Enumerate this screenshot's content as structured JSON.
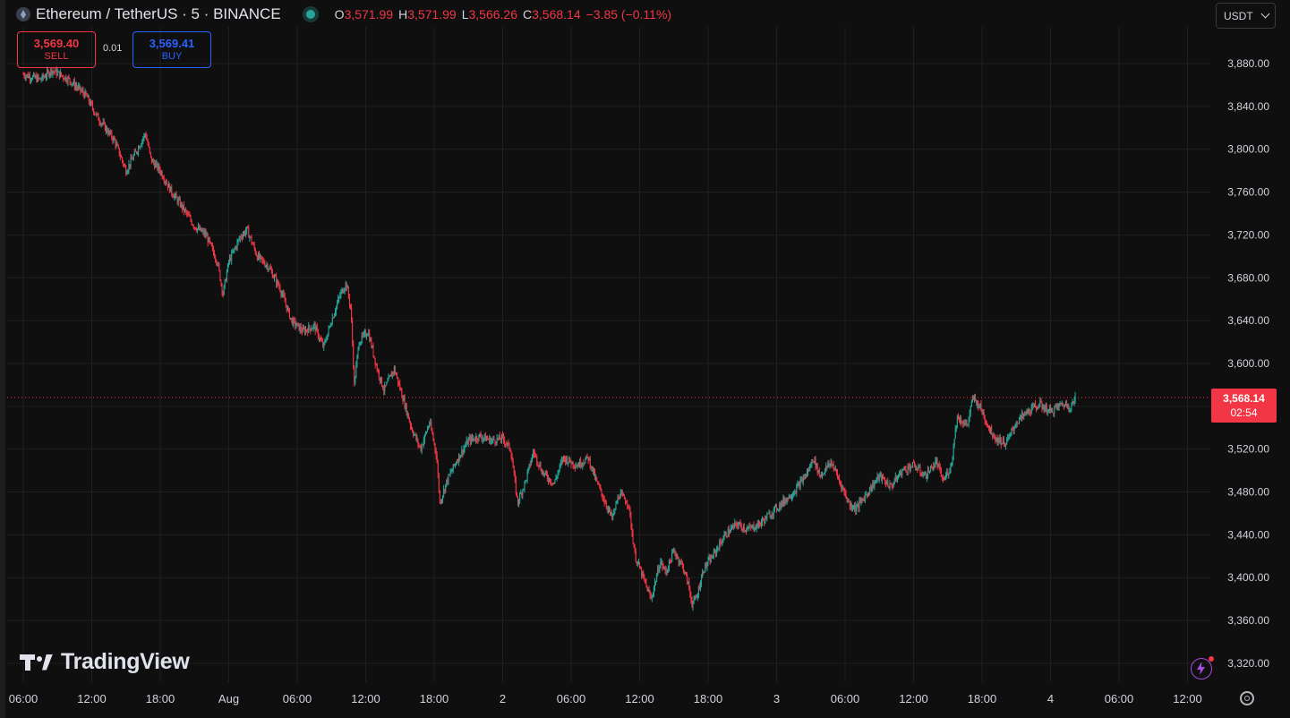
{
  "header": {
    "symbol_title": "Ethereum / TetherUS · 5 · BINANCE",
    "ohlc": [
      {
        "key": "O",
        "value": "3,571.99"
      },
      {
        "key": "H",
        "value": "3,571.99"
      },
      {
        "key": "L",
        "value": "3,566.26"
      },
      {
        "key": "C",
        "value": "3,568.14"
      }
    ],
    "change": "−3.85 (−0.11%)"
  },
  "trade": {
    "sell_price": "3,569.40",
    "sell_label": "SELL",
    "spread": "0.01",
    "buy_price": "3,569.41",
    "buy_label": "BUY"
  },
  "currency": {
    "selected": "USDT"
  },
  "watermark": "TradingView",
  "price_label": {
    "price": "3,568.14",
    "countdown": "02:54"
  },
  "colors": {
    "up": "#26a69a",
    "down": "#f23645",
    "background": "#0f0f0f",
    "grid": "#1f1f1f",
    "axis_text": "#d1d4dc",
    "buy": "#2962ff",
    "alert": "#a64bdb"
  },
  "icons": [
    "ethereum-icon",
    "market-status-icon",
    "chevron-down-icon",
    "tradingview-logo-icon",
    "lightning-alert-icon",
    "settings-gear-icon"
  ],
  "chart_data": {
    "type": "line",
    "title": "Ethereum / TetherUS · 5 · BINANCE",
    "interval": "5",
    "last_price": 3568.14,
    "ylim": [
      3320,
      3900
    ],
    "y_ticks": [
      "3,880.00",
      "3,840.00",
      "3,800.00",
      "3,760.00",
      "3,720.00",
      "3,680.00",
      "3,640.00",
      "3,600.00",
      "3,560.00",
      "3,520.00",
      "3,480.00",
      "3,440.00",
      "3,400.00",
      "3,360.00",
      "3,320.00"
    ],
    "x_ticks": [
      "06:00",
      "12:00",
      "18:00",
      "Aug",
      "06:00",
      "12:00",
      "18:00",
      "2",
      "06:00",
      "12:00",
      "18:00",
      "3",
      "06:00",
      "12:00",
      "18:00",
      "4",
      "06:00",
      "12:00"
    ],
    "grid": true,
    "series": [
      {
        "values": [
          [
            0,
            3870
          ],
          [
            1.5,
            3865
          ],
          [
            2.5,
            3874
          ],
          [
            4,
            3865
          ],
          [
            5.5,
            3850
          ],
          [
            6.5,
            3830
          ],
          [
            8,
            3808
          ],
          [
            9,
            3780
          ],
          [
            10,
            3800
          ],
          [
            10.7,
            3815
          ],
          [
            11.2,
            3790
          ],
          [
            12,
            3780
          ],
          [
            13,
            3760
          ],
          [
            14,
            3745
          ],
          [
            15,
            3728
          ],
          [
            16,
            3720
          ],
          [
            17,
            3695
          ],
          [
            17.5,
            3665
          ],
          [
            18,
            3695
          ],
          [
            19,
            3718
          ],
          [
            19.6,
            3725
          ],
          [
            20.5,
            3700
          ],
          [
            21.5,
            3690
          ],
          [
            22.5,
            3670
          ],
          [
            23.5,
            3640
          ],
          [
            24.5,
            3630
          ],
          [
            25.5,
            3635
          ],
          [
            26.3,
            3615
          ],
          [
            27,
            3640
          ],
          [
            27.8,
            3665
          ],
          [
            28.3,
            3675
          ],
          [
            28.7,
            3650
          ],
          [
            29,
            3580
          ],
          [
            29.4,
            3620
          ],
          [
            30.2,
            3630
          ],
          [
            31,
            3595
          ],
          [
            31.6,
            3575
          ],
          [
            32.5,
            3595
          ],
          [
            33.2,
            3570
          ],
          [
            34,
            3540
          ],
          [
            34.8,
            3520
          ],
          [
            35.6,
            3545
          ],
          [
            36.2,
            3515
          ],
          [
            36.5,
            3470
          ],
          [
            37.1,
            3490
          ],
          [
            38,
            3510
          ],
          [
            39,
            3528
          ],
          [
            40,
            3532
          ],
          [
            41,
            3528
          ],
          [
            42,
            3530
          ],
          [
            42.7,
            3520
          ],
          [
            43.3,
            3470
          ],
          [
            44,
            3490
          ],
          [
            44.7,
            3518
          ],
          [
            45.5,
            3498
          ],
          [
            46.5,
            3488
          ],
          [
            47.3,
            3512
          ],
          [
            48.5,
            3505
          ],
          [
            49.5,
            3512
          ],
          [
            50.2,
            3490
          ],
          [
            50.8,
            3475
          ],
          [
            51.6,
            3455
          ],
          [
            52.2,
            3478
          ],
          [
            53,
            3470
          ],
          [
            53.6,
            3420
          ],
          [
            54.3,
            3400
          ],
          [
            55,
            3380
          ],
          [
            55.8,
            3415
          ],
          [
            56.3,
            3405
          ],
          [
            57,
            3425
          ],
          [
            57.8,
            3410
          ],
          [
            58.3,
            3392
          ],
          [
            58.6,
            3375
          ],
          [
            59,
            3382
          ],
          [
            59.6,
            3408
          ],
          [
            60.4,
            3420
          ],
          [
            61.5,
            3440
          ],
          [
            62.5,
            3450
          ],
          [
            63.5,
            3445
          ],
          [
            64.5,
            3450
          ],
          [
            65.5,
            3460
          ],
          [
            66.5,
            3470
          ],
          [
            67.5,
            3480
          ],
          [
            68.2,
            3490
          ],
          [
            68.8,
            3500
          ],
          [
            69.2,
            3512
          ],
          [
            69.8,
            3495
          ],
          [
            70.8,
            3508
          ],
          [
            71.6,
            3488
          ],
          [
            72.4,
            3468
          ],
          [
            73,
            3465
          ],
          [
            74,
            3480
          ],
          [
            75,
            3495
          ],
          [
            76,
            3485
          ],
          [
            77,
            3500
          ],
          [
            78,
            3505
          ],
          [
            79,
            3495
          ],
          [
            80,
            3508
          ],
          [
            80.6,
            3490
          ],
          [
            81.3,
            3505
          ],
          [
            81.8,
            3550
          ],
          [
            82.7,
            3542
          ],
          [
            83.2,
            3568
          ],
          [
            83.8,
            3560
          ],
          [
            84.6,
            3540
          ],
          [
            85.2,
            3530
          ],
          [
            86.1,
            3525
          ],
          [
            87,
            3545
          ],
          [
            88,
            3555
          ],
          [
            89,
            3562
          ],
          [
            90,
            3555
          ],
          [
            91,
            3562
          ],
          [
            91.8,
            3560
          ],
          [
            92.2,
            3568.14
          ]
        ]
      }
    ]
  }
}
